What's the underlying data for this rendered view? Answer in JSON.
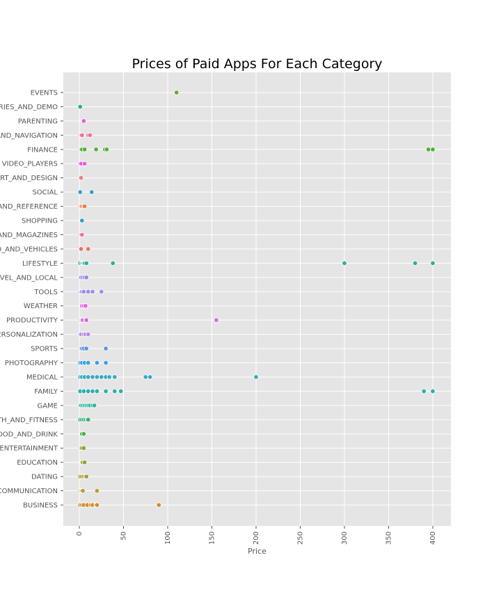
{
  "chart_data": {
    "type": "scatter",
    "title": "Prices of Paid Apps For Each Category",
    "xlabel": "Price",
    "ylabel": "",
    "xlim": [
      -15,
      420
    ],
    "xticks": [
      0,
      50,
      100,
      150,
      200,
      250,
      300,
      350,
      400
    ],
    "grid": true,
    "background": "#E5E5E5",
    "categories": [
      {
        "name": "EVENTS",
        "display": "EVENTS",
        "color": "#6BA72E",
        "prices": [
          109.99
        ]
      },
      {
        "name": "LIBRARIES_AND_DEMO",
        "display": "RIES_AND_DEMO",
        "color": "#2AAE8F",
        "prices": [
          0.99
        ]
      },
      {
        "name": "PARENTING",
        "display": "PARENTING",
        "color": "#E65FE1",
        "prices": [
          4.99
        ]
      },
      {
        "name": "MAPS_AND_NAVIGATION",
        "display": "AND_NAVIGATION",
        "color": "#F0719A",
        "prices": [
          0.99,
          1.99,
          2.99,
          9.99,
          11.99
        ]
      },
      {
        "name": "FINANCE",
        "display": "FINANCE",
        "color": "#4EB437",
        "prices": [
          1.99,
          2.99,
          5.99,
          18.99,
          28.99,
          30.99,
          394.99,
          399.99
        ]
      },
      {
        "name": "VIDEO_PLAYERS",
        "display": "VIDEO_PLAYERS",
        "color": "#EE5AE6",
        "prices": [
          0.99,
          1.99,
          5.99
        ]
      },
      {
        "name": "ART_AND_DESIGN",
        "display": "RT_AND_DESIGN",
        "color": "#F17A93",
        "prices": [
          1.99
        ]
      },
      {
        "name": "SOCIAL",
        "display": "SOCIAL",
        "color": "#2BA6C4",
        "prices": [
          0.99,
          13.99
        ]
      },
      {
        "name": "BOOKS_AND_REFERENCE",
        "display": "AND_REFERENCE",
        "color": "#E97E4B",
        "prices": [
          0.99,
          1.99,
          2.99,
          4.99,
          5.99
        ]
      },
      {
        "name": "SHOPPING",
        "display": "SHOPPING",
        "color": "#2EA3C9",
        "prices": [
          2.99
        ]
      },
      {
        "name": "NEWS_AND_MAGAZINES",
        "display": "AND_MAGAZINES",
        "color": "#F06DAE",
        "prices": [
          0.99,
          1.99,
          2.99
        ]
      },
      {
        "name": "AUTO_AND_VEHICLES",
        "display": "O_AND_VEHICLES",
        "color": "#EB7368",
        "prices": [
          1.99,
          9.99
        ]
      },
      {
        "name": "LIFESTYLE",
        "display": "LIFESTYLE",
        "color": "#2FAC9C",
        "prices": [
          0.99,
          2.99,
          3.99,
          4.99,
          5.99,
          7.99,
          37.99,
          299.99,
          379.99,
          399.99
        ]
      },
      {
        "name": "TRAVEL_AND_LOCAL",
        "display": "VEL_AND_LOCAL",
        "color": "#8B8EE9",
        "prices": [
          1.99,
          3.99,
          5.99,
          7.99
        ]
      },
      {
        "name": "TOOLS",
        "display": "TOOLS",
        "color": "#A48BE6",
        "prices": [
          0.99,
          1.99,
          2.99,
          4.99,
          9.99,
          14.99,
          24.99
        ]
      },
      {
        "name": "WEATHER",
        "display": "WEATHER",
        "color": "#E365E4",
        "prices": [
          2.99,
          4.99,
          6.99
        ]
      },
      {
        "name": "PRODUCTIVITY",
        "display": "PRODUCTIVITY",
        "color": "#D46AE6",
        "prices": [
          1.99,
          2.99,
          3.99,
          6.99,
          7.99,
          154.99
        ]
      },
      {
        "name": "PERSONALIZATION",
        "display": "ERSONALIZATION",
        "color": "#B48BE4",
        "prices": [
          0.99,
          1.99,
          4.99,
          6.99,
          9.99
        ]
      },
      {
        "name": "SPORTS",
        "display": "SPORTS",
        "color": "#5A97E2",
        "prices": [
          1.99,
          2.99,
          4.99,
          7.99,
          29.99
        ]
      },
      {
        "name": "PHOTOGRAPHY",
        "display": "PHOTOGRAPHY",
        "color": "#3D9FE0",
        "prices": [
          0.99,
          2.99,
          5.99,
          9.99,
          19.99,
          29.99
        ]
      },
      {
        "name": "MEDICAL",
        "display": "MEDICAL",
        "color": "#36AAC4",
        "prices": [
          0.99,
          2.99,
          5.99,
          9.99,
          14.99,
          19.99,
          24.99,
          29.99,
          33.99,
          39.99,
          74.99,
          79.99,
          199.99
        ]
      },
      {
        "name": "FAMILY",
        "display": "FAMILY",
        "color": "#2DAEAC",
        "prices": [
          0.99,
          4.99,
          9.99,
          14.99,
          19.99,
          29.99,
          39.99,
          46.99,
          389.99,
          399.99
        ]
      },
      {
        "name": "GAME",
        "display": "GAME",
        "color": "#34B49A",
        "prices": [
          0.99,
          1.99,
          3.99,
          5.99,
          7.99,
          9.99,
          11.99,
          14.99,
          16.99
        ]
      },
      {
        "name": "HEALTH_AND_FITNESS",
        "display": "TH_AND_FITNESS",
        "color": "#35B275",
        "prices": [
          0.99,
          2.99,
          4.99,
          6.99,
          8.99,
          9.99
        ]
      },
      {
        "name": "FOOD_AND_DRINK",
        "display": "OOD_AND_DRINK",
        "color": "#48B24A",
        "prices": [
          2.99,
          4.99
        ]
      },
      {
        "name": "ENTERTAINMENT",
        "display": "ENTERTAINMENT",
        "color": "#8CA52E",
        "prices": [
          1.99,
          2.99,
          4.99
        ]
      },
      {
        "name": "EDUCATION",
        "display": "EDUCATION",
        "color": "#94A330",
        "prices": [
          2.99,
          3.99,
          5.99
        ]
      },
      {
        "name": "DATING",
        "display": "DATING",
        "color": "#A79A35",
        "prices": [
          0.99,
          2.99,
          4.99,
          6.99,
          7.99
        ]
      },
      {
        "name": "COMMUNICATION",
        "display": "COMMUNICATION",
        "color": "#BE9C2E",
        "prices": [
          0.99,
          1.99,
          2.99,
          3.99,
          19.99
        ]
      },
      {
        "name": "BUSINESS",
        "display": "BUSINESS",
        "color": "#D18C2E",
        "prices": [
          0.99,
          2.99,
          4.99,
          8.99,
          12.99,
          14.99,
          18.99,
          19.99,
          89.99
        ]
      }
    ]
  }
}
